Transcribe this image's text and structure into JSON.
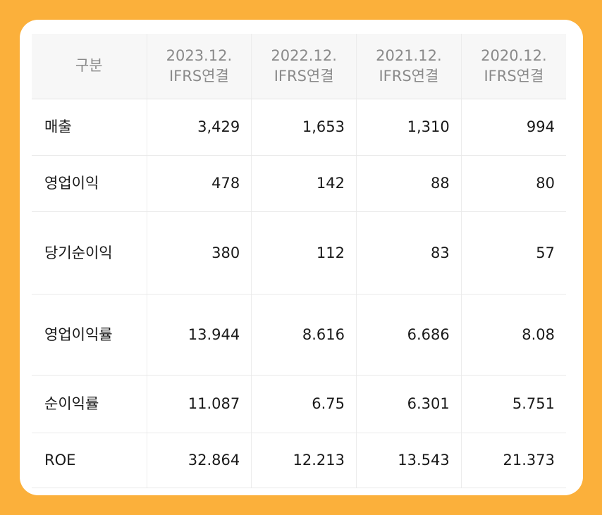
{
  "table": {
    "header": {
      "category": "구분",
      "columns": [
        {
          "period": "2023.12.",
          "standard": "IFRS연결"
        },
        {
          "period": "2022.12.",
          "standard": "IFRS연결"
        },
        {
          "period": "2021.12.",
          "standard": "IFRS연결"
        },
        {
          "period": "2020.12.",
          "standard": "IFRS연결"
        }
      ]
    },
    "rows": [
      {
        "label": "매출",
        "values": [
          "3,429",
          "1,653",
          "1,310",
          "994"
        ]
      },
      {
        "label": "영업이익",
        "values": [
          "478",
          "142",
          "88",
          "80"
        ]
      },
      {
        "label": "당기순이익",
        "values": [
          "380",
          "112",
          "83",
          "57"
        ]
      },
      {
        "label": "영업이익률",
        "values": [
          "13.944",
          "8.616",
          "6.686",
          "8.08"
        ]
      },
      {
        "label": "순이익률",
        "values": [
          "11.087",
          "6.75",
          "6.301",
          "5.751"
        ]
      },
      {
        "label": "ROE",
        "values": [
          "32.864",
          "12.213",
          "13.543",
          "21.373"
        ]
      }
    ]
  },
  "colors": {
    "background": "#fbb03b",
    "card": "#ffffff",
    "header_bg": "#f7f7f7",
    "header_text": "#8a8a8a",
    "body_text": "#1a1a1a",
    "grid": "#ececec"
  }
}
